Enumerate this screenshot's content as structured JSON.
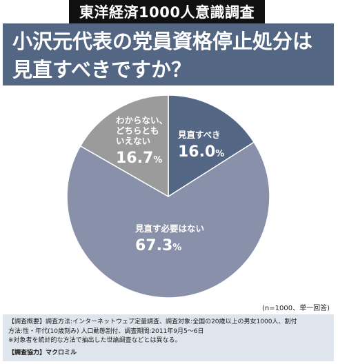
{
  "top_label": "東洋経済1000人意識調査",
  "header": {
    "line1": "小沢元代表の党員資格停止処分は",
    "line2": "見直すべきですか？"
  },
  "note": "(n=1000、単一回答)",
  "footer": {
    "line1": "【調査概要】調査方法:インターネットウェブ定量調査、調査対象:全国の20歳以上の男女1000人、割付",
    "line2": "方法:性・年代(10歳刻み) 人口動態割付、調査期間:2011年9月5～6日",
    "line3": "※対象者を統計的な方法で抽出した世論調査などとは異なる。",
    "credit": "【調査協力】マクロミル"
  },
  "colors": {
    "header_bg": "#536785",
    "slice_should_review": "#536785",
    "slice_no_need": "#8990a9",
    "slice_unknown": "#9b9b9b",
    "footer_bg": "#dfe5ec"
  },
  "chart_data": {
    "type": "pie",
    "slices": [
      {
        "label": "見直すべき",
        "value": 16.0,
        "display": "16.0",
        "unit": "%",
        "color": "#536785"
      },
      {
        "label": "見直す必要はない",
        "value": 67.3,
        "display": "67.3",
        "unit": "%",
        "color": "#8990a9"
      },
      {
        "label": "わからない、どちらともいえない",
        "label_lines": [
          "わからない、",
          "どちらとも",
          "いえない"
        ],
        "value": 16.7,
        "display": "16.7",
        "unit": "%",
        "color": "#9b9b9b"
      }
    ]
  }
}
